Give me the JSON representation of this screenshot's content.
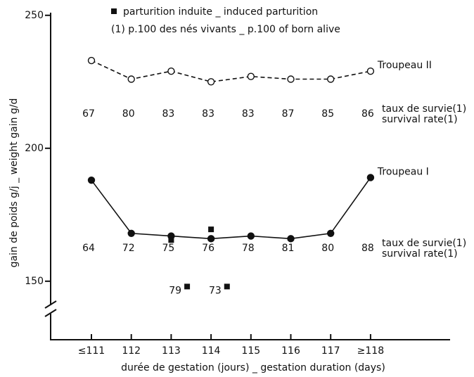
{
  "chart_data": {
    "type": "line",
    "y_axis_label": "gain de poids g/j _ weight gain g/d",
    "x_axis_label": "durée de gestation (jours) _ gestation duration (days)",
    "footnote": "(1) p.100 des nés vivants _ p.100 of born alive",
    "survival_label_fr": "taux de survie(1)",
    "survival_label_en": "survival rate(1)",
    "categories": [
      "≤111",
      "112",
      "113",
      "114",
      "115",
      "116",
      "117",
      "≥118"
    ],
    "ylim": [
      128,
      251
    ],
    "yticks": [
      150,
      200,
      250
    ],
    "series": [
      {
        "name": "Troupeau II",
        "color": "#111111",
        "style": "dashed",
        "marker": "open-circle",
        "values": [
          233,
          226,
          229,
          225,
          227,
          226,
          226,
          229
        ],
        "survival": [
          67,
          80,
          83,
          83,
          83,
          87,
          85,
          86
        ]
      },
      {
        "name": "Troupeau I",
        "color": "#111111",
        "style": "solid",
        "marker": "filled-circle",
        "values": [
          188,
          168,
          167,
          166,
          167,
          166,
          168,
          189
        ],
        "survival": [
          64,
          72,
          75,
          76,
          78,
          81,
          80,
          88
        ]
      },
      {
        "name": "parturition induite _ induced parturition",
        "color": "#111111",
        "type": "scatter",
        "marker": "square",
        "x": [
          2,
          3,
          2.4,
          3.4
        ],
        "values": [
          165.5,
          169.5,
          148,
          148
        ],
        "survival": [
          null,
          null,
          79,
          73
        ]
      }
    ]
  }
}
